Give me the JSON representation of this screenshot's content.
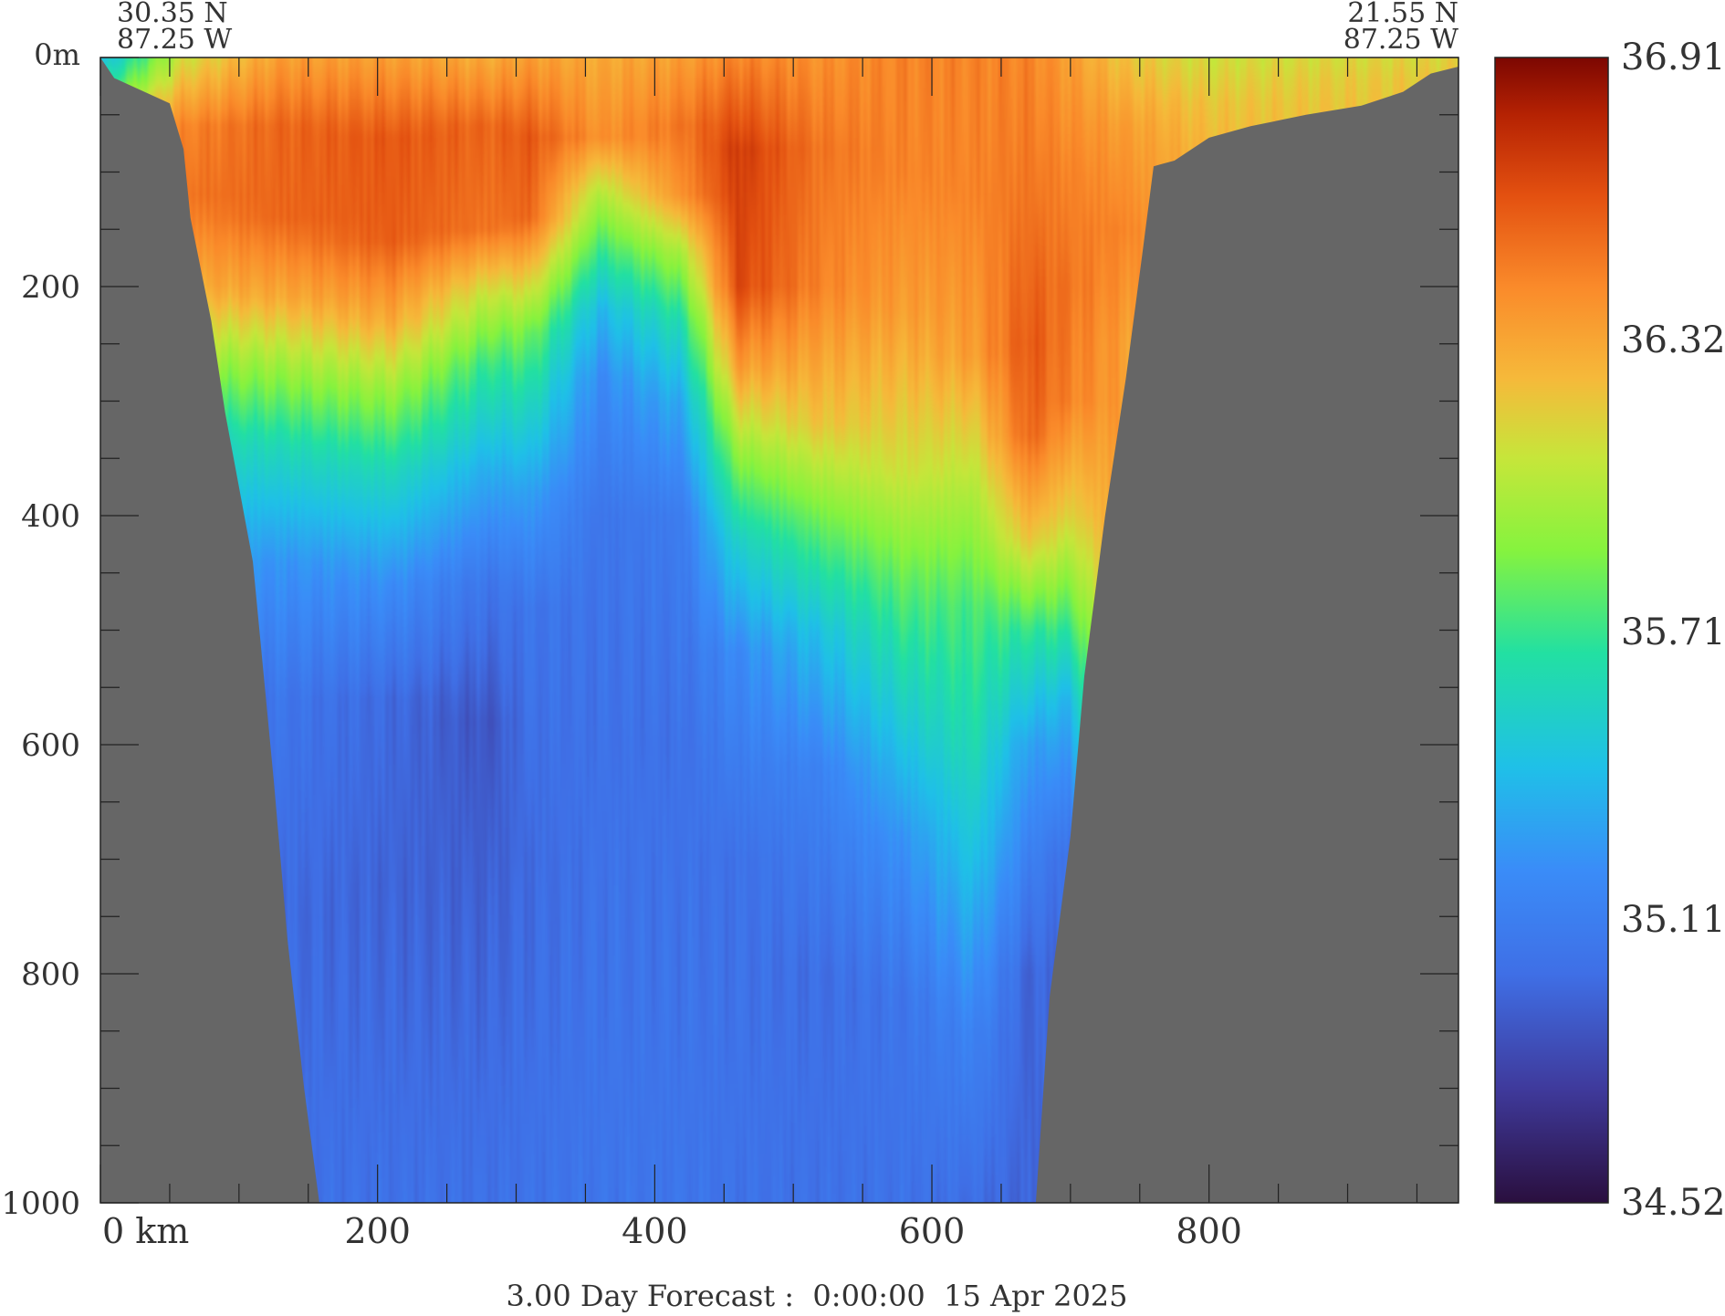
{
  "chart_data": {
    "type": "heatmap",
    "title": "",
    "footer": "3.00 Day Forecast :  0:00:00  15 Apr 2025",
    "start_point": {
      "lat": "30.35 N",
      "lon": "87.25 W"
    },
    "end_point": {
      "lat": "21.55 N",
      "lon": "87.25 W"
    },
    "x_axis": {
      "label": "km",
      "range": [
        0,
        980
      ],
      "major_ticks": [
        0,
        200,
        400,
        600,
        800
      ],
      "tick_labels": [
        "0 km",
        "200",
        "400",
        "600",
        "800"
      ],
      "minor_step": 50
    },
    "y_axis": {
      "label": "m",
      "range": [
        0,
        1000
      ],
      "inverted": true,
      "major_ticks": [
        0,
        200,
        400,
        600,
        800,
        1000
      ],
      "tick_labels": [
        "0m",
        "200",
        "400",
        "600",
        "800",
        "1000"
      ],
      "minor_step": 50
    },
    "colorbar": {
      "min": 34.52,
      "max": 36.91,
      "tick_labels": [
        "36.91",
        "36.32",
        "35.71",
        "35.11",
        "34.52"
      ],
      "tick_values": [
        36.91,
        36.32,
        35.71,
        35.11,
        34.52
      ],
      "stops": [
        {
          "v": 0.0,
          "color": "#2a0f3e"
        },
        {
          "v": 0.1,
          "color": "#3f3a9c"
        },
        {
          "v": 0.2,
          "color": "#3f6fe6"
        },
        {
          "v": 0.29,
          "color": "#3a8cf8"
        },
        {
          "v": 0.38,
          "color": "#1fc0e8"
        },
        {
          "v": 0.48,
          "color": "#22e0a2"
        },
        {
          "v": 0.57,
          "color": "#86f33e"
        },
        {
          "v": 0.65,
          "color": "#c6e63a"
        },
        {
          "v": 0.72,
          "color": "#f6b93a"
        },
        {
          "v": 0.8,
          "color": "#fa8a2a"
        },
        {
          "v": 0.88,
          "color": "#e35010"
        },
        {
          "v": 0.95,
          "color": "#b52203"
        },
        {
          "v": 1.0,
          "color": "#7c0702"
        }
      ]
    },
    "land_color": "#666666",
    "seafloor_depth_m": [
      [
        0,
        0
      ],
      [
        10,
        18
      ],
      [
        50,
        40
      ],
      [
        60,
        80
      ],
      [
        65,
        140
      ],
      [
        80,
        230
      ],
      [
        90,
        310
      ],
      [
        110,
        440
      ],
      [
        125,
        630
      ],
      [
        135,
        770
      ],
      [
        147,
        900
      ],
      [
        158,
        1000
      ],
      [
        675,
        1000
      ],
      [
        685,
        820
      ],
      [
        700,
        680
      ],
      [
        710,
        540
      ],
      [
        725,
        400
      ],
      [
        740,
        280
      ],
      [
        752,
        170
      ],
      [
        760,
        95
      ],
      [
        775,
        90
      ],
      [
        800,
        70
      ],
      [
        830,
        60
      ],
      [
        870,
        50
      ],
      [
        910,
        42
      ],
      [
        940,
        30
      ],
      [
        960,
        14
      ],
      [
        980,
        8
      ]
    ],
    "salinity_columns": [
      {
        "x": 0,
        "profile": [
          [
            0,
            35.4
          ],
          [
            20,
            35.6
          ],
          [
            40,
            35.9
          ]
        ]
      },
      {
        "x": 60,
        "profile": [
          [
            0,
            36.1
          ],
          [
            60,
            36.45
          ],
          [
            120,
            36.5
          ],
          [
            200,
            36.3
          ],
          [
            260,
            35.95
          ],
          [
            330,
            35.6
          ],
          [
            430,
            35.3
          ],
          [
            560,
            35.08
          ],
          [
            800,
            35.02
          ],
          [
            1000,
            35.0
          ]
        ]
      },
      {
        "x": 130,
        "profile": [
          [
            0,
            36.35
          ],
          [
            60,
            36.55
          ],
          [
            140,
            36.55
          ],
          [
            210,
            36.3
          ],
          [
            270,
            35.95
          ],
          [
            340,
            35.6
          ],
          [
            440,
            35.25
          ],
          [
            560,
            35.05
          ],
          [
            750,
            34.98
          ],
          [
            1000,
            35.02
          ]
        ]
      },
      {
        "x": 210,
        "profile": [
          [
            0,
            36.35
          ],
          [
            70,
            36.6
          ],
          [
            160,
            36.58
          ],
          [
            230,
            36.3
          ],
          [
            290,
            35.95
          ],
          [
            360,
            35.6
          ],
          [
            460,
            35.22
          ],
          [
            560,
            34.98
          ],
          [
            720,
            34.95
          ],
          [
            1000,
            35.02
          ]
        ]
      },
      {
        "x": 280,
        "profile": [
          [
            0,
            36.3
          ],
          [
            60,
            36.55
          ],
          [
            150,
            36.5
          ],
          [
            210,
            36.05
          ],
          [
            270,
            35.7
          ],
          [
            360,
            35.35
          ],
          [
            460,
            35.05
          ],
          [
            580,
            34.88
          ],
          [
            700,
            34.93
          ],
          [
            1000,
            35.02
          ]
        ]
      },
      {
        "x": 310,
        "profile": [
          [
            0,
            36.35
          ],
          [
            70,
            36.6
          ],
          [
            140,
            36.55
          ],
          [
            190,
            36.2
          ],
          [
            240,
            35.85
          ],
          [
            300,
            35.6
          ],
          [
            380,
            35.3
          ],
          [
            480,
            35.05
          ],
          [
            700,
            34.98
          ],
          [
            1000,
            35.03
          ]
        ]
      },
      {
        "x": 360,
        "profile": [
          [
            0,
            36.3
          ],
          [
            70,
            36.4
          ],
          [
            120,
            36.0
          ],
          [
            170,
            35.7
          ],
          [
            220,
            35.4
          ],
          [
            280,
            35.2
          ],
          [
            400,
            35.05
          ],
          [
            600,
            35.02
          ],
          [
            1000,
            35.05
          ]
        ]
      },
      {
        "x": 420,
        "profile": [
          [
            0,
            36.35
          ],
          [
            60,
            36.5
          ],
          [
            120,
            36.4
          ],
          [
            170,
            36.0
          ],
          [
            230,
            35.65
          ],
          [
            300,
            35.35
          ],
          [
            400,
            35.1
          ],
          [
            600,
            35.02
          ],
          [
            1000,
            35.05
          ]
        ]
      },
      {
        "x": 460,
        "profile": [
          [
            0,
            36.45
          ],
          [
            80,
            36.7
          ],
          [
            200,
            36.65
          ],
          [
            270,
            36.35
          ],
          [
            340,
            35.95
          ],
          [
            420,
            35.55
          ],
          [
            520,
            35.2
          ],
          [
            700,
            35.02
          ],
          [
            1000,
            35.03
          ]
        ]
      },
      {
        "x": 520,
        "profile": [
          [
            0,
            36.4
          ],
          [
            80,
            36.5
          ],
          [
            200,
            36.45
          ],
          [
            320,
            36.2
          ],
          [
            400,
            35.85
          ],
          [
            500,
            35.45
          ],
          [
            620,
            35.15
          ],
          [
            800,
            35.0
          ],
          [
            1000,
            35.02
          ]
        ]
      },
      {
        "x": 580,
        "profile": [
          [
            0,
            36.45
          ],
          [
            100,
            36.45
          ],
          [
            220,
            36.35
          ],
          [
            360,
            36.1
          ],
          [
            460,
            35.8
          ],
          [
            560,
            35.55
          ],
          [
            680,
            35.25
          ],
          [
            820,
            35.05
          ],
          [
            1000,
            35.03
          ]
        ]
      },
      {
        "x": 630,
        "profile": [
          [
            0,
            36.45
          ],
          [
            120,
            36.45
          ],
          [
            260,
            36.35
          ],
          [
            380,
            36.0
          ],
          [
            480,
            35.75
          ],
          [
            600,
            35.62
          ],
          [
            700,
            35.45
          ],
          [
            850,
            35.15
          ],
          [
            1000,
            35.0
          ]
        ]
      },
      {
        "x": 670,
        "profile": [
          [
            0,
            36.45
          ],
          [
            120,
            36.5
          ],
          [
            250,
            36.6
          ],
          [
            330,
            36.55
          ],
          [
            420,
            36.2
          ],
          [
            500,
            35.7
          ],
          [
            600,
            35.3
          ],
          [
            800,
            34.95
          ],
          [
            1000,
            34.95
          ]
        ]
      },
      {
        "x": 700,
        "profile": [
          [
            0,
            36.35
          ],
          [
            100,
            36.45
          ],
          [
            200,
            36.5
          ],
          [
            300,
            36.45
          ],
          [
            400,
            36.15
          ],
          [
            480,
            35.8
          ],
          [
            560,
            35.4
          ],
          [
            700,
            35.0
          ]
        ]
      },
      {
        "x": 740,
        "profile": [
          [
            0,
            36.2
          ],
          [
            60,
            36.35
          ],
          [
            150,
            36.45
          ],
          [
            250,
            36.35
          ]
        ]
      },
      {
        "x": 800,
        "profile": [
          [
            0,
            36.1
          ],
          [
            40,
            36.2
          ],
          [
            80,
            36.25
          ]
        ]
      },
      {
        "x": 980,
        "profile": [
          [
            0,
            36.15
          ],
          [
            20,
            36.2
          ]
        ]
      }
    ]
  }
}
